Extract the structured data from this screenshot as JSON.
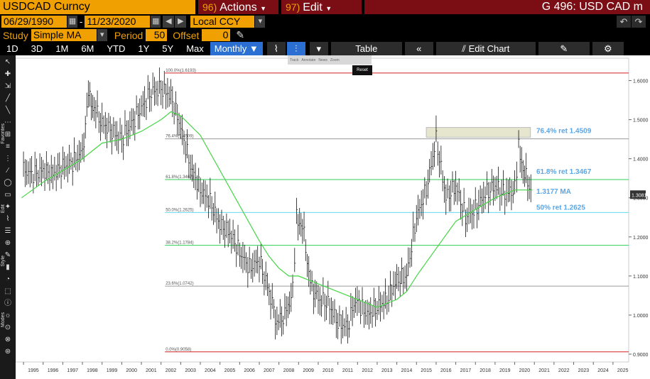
{
  "header": {
    "ticker": "USDCAD Curncy",
    "actions": {
      "num": "96)",
      "label": "Actions"
    },
    "edit": {
      "num": "97)",
      "label": "Edit"
    },
    "title": "G 496: USD CAD m"
  },
  "dates": {
    "start": "06/29/1990",
    "end": "11/23/2020",
    "currency": "Local CCY"
  },
  "study": {
    "label": "Study",
    "type": "Simple MA",
    "period_label": "Period",
    "period": "50",
    "offset_label": "Offset",
    "offset": "0"
  },
  "ranges": [
    "1D",
    "3D",
    "1M",
    "6M",
    "YTD",
    "1Y",
    "5Y",
    "Max"
  ],
  "frequency": "Monthly",
  "table_label": "Table",
  "edit_chart_label": "Edit Chart",
  "toolbar_popup": [
    "Track",
    "Annotate",
    "News",
    "Zoom"
  ],
  "reset_label": "Reset",
  "sidebar_labels": [
    "Favorites",
    "Edit",
    "Style",
    "Modes"
  ],
  "colors": {
    "accent": "#f0a000",
    "red": "#7a0e14",
    "ma": "#46d546",
    "fib_green": "#2fcf57",
    "fib_cyan": "#6ad8ec",
    "annot": "#5aa6e6"
  },
  "chart_data": {
    "type": "line",
    "x_ticks": [
      "1995",
      "1996",
      "1997",
      "1998",
      "1999",
      "2000",
      "2001",
      "2002",
      "2003",
      "2004",
      "2005",
      "2006",
      "2007",
      "2008",
      "2009",
      "2010",
      "2011",
      "2012",
      "2013",
      "2014",
      "2015",
      "2016",
      "2017",
      "2018",
      "2019",
      "2020",
      "2021",
      "2022",
      "2023",
      "2024",
      "2025"
    ],
    "y_ticks": [
      "1.6000",
      "1.5000",
      "1.4000",
      "1.3000",
      "1.2000",
      "1.1000",
      "1.0000",
      "0.9000"
    ],
    "ylim": [
      0.88,
      1.65
    ],
    "price_series": {
      "name": "USDCAD",
      "x": [
        1995.0,
        1995.5,
        1996.0,
        1996.5,
        1997.0,
        1997.5,
        1998.0,
        1998.3,
        1998.6,
        1999.0,
        1999.5,
        2000.0,
        2000.5,
        2001.0,
        2001.5,
        2002.0,
        2002.5,
        2003.0,
        2003.5,
        2004.0,
        2004.5,
        2005.0,
        2005.5,
        2006.0,
        2006.5,
        2007.0,
        2007.5,
        2007.9,
        2008.3,
        2008.7,
        2008.9,
        2009.2,
        2009.6,
        2010.0,
        2010.5,
        2011.0,
        2011.5,
        2011.9,
        2012.5,
        2013.0,
        2013.5,
        2014.0,
        2014.5,
        2015.0,
        2015.5,
        2016.0,
        2016.5,
        2017.0,
        2017.5,
        2018.0,
        2018.5,
        2019.0,
        2019.5,
        2020.0,
        2020.2,
        2020.5,
        2020.9
      ],
      "y": [
        1.37,
        1.36,
        1.37,
        1.36,
        1.38,
        1.39,
        1.42,
        1.56,
        1.53,
        1.49,
        1.47,
        1.45,
        1.49,
        1.53,
        1.57,
        1.58,
        1.56,
        1.48,
        1.38,
        1.32,
        1.29,
        1.23,
        1.21,
        1.16,
        1.12,
        1.14,
        1.06,
        0.98,
        1.0,
        1.06,
        1.25,
        1.23,
        1.08,
        1.04,
        1.03,
        0.98,
        0.97,
        1.04,
        1.0,
        1.02,
        1.04,
        1.09,
        1.1,
        1.25,
        1.32,
        1.45,
        1.3,
        1.33,
        1.25,
        1.27,
        1.31,
        1.33,
        1.31,
        1.32,
        1.43,
        1.36,
        1.31
      ]
    },
    "ma_series": {
      "name": "1.3177 MA",
      "x": [
        1994.9,
        1996.0,
        1997.0,
        1998.0,
        1999.0,
        2000.0,
        2001.0,
        2002.0,
        2002.5,
        2003.0,
        2004.0,
        2005.0,
        2006.0,
        2007.0,
        2007.5,
        2008.0,
        2008.5,
        2009.0,
        2009.5,
        2010.0,
        2011.0,
        2012.0,
        2012.5,
        2013.0,
        2014.0,
        2014.5,
        2015.0,
        2016.0,
        2017.0,
        2018.0,
        2019.0,
        2020.0,
        2020.9
      ],
      "y": [
        1.3,
        1.34,
        1.37,
        1.4,
        1.44,
        1.45,
        1.47,
        1.5,
        1.52,
        1.51,
        1.46,
        1.37,
        1.28,
        1.19,
        1.15,
        1.12,
        1.1,
        1.1,
        1.09,
        1.08,
        1.06,
        1.04,
        1.03,
        1.02,
        1.04,
        1.06,
        1.1,
        1.17,
        1.24,
        1.27,
        1.3,
        1.32,
        1.32
      ]
    },
    "fib_levels": [
      {
        "label": "100.0%(1.6193)",
        "value": 1.6193,
        "color": "#d02020"
      },
      {
        "label": "76.4%(1.4509)",
        "value": 1.4509,
        "color": "#9a9a9a"
      },
      {
        "label": "61.8%(1.3467)",
        "value": 1.3467,
        "color": "#2fcf57"
      },
      {
        "label": "50.0%(1.2625)",
        "value": 1.2625,
        "color": "#6ad8ec"
      },
      {
        "label": "38.2%(1.1784)",
        "value": 1.1784,
        "color": "#2fcf57"
      },
      {
        "label": "23.6%(1.0742)",
        "value": 1.0742,
        "color": "#9a9a9a"
      },
      {
        "label": "0.0%(0.9058)",
        "value": 0.9058,
        "color": "#d02020"
      }
    ],
    "annotations": [
      {
        "text": "76.4% ret 1.4509",
        "value": 1.4509
      },
      {
        "text": "61.8% ret 1.3467",
        "value": 1.3467
      },
      {
        "text": "1.3177 MA",
        "value": 1.3177
      },
      {
        "text": "50% ret 1.2625",
        "value": 1.2625
      }
    ],
    "last_price": "1.3081"
  }
}
